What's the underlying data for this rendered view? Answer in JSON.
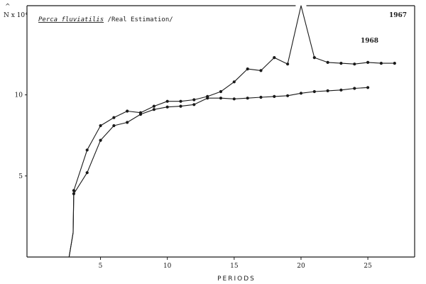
{
  "chart_data": {
    "type": "line",
    "title_italic": "Perca fluviatilis",
    "title_rest": " /Real Estimation/",
    "xlabel": "PERIODS",
    "ylabel": "N x 10⁴",
    "ylabel_hat": "^",
    "xlim": [
      -0.5,
      28.5
    ],
    "ylim": [
      0,
      15.5
    ],
    "xticks": [
      5,
      10,
      15,
      20,
      25
    ],
    "yticks": [
      5,
      10
    ],
    "grid": false,
    "series": [
      {
        "name": "1967",
        "x": [
          2.65,
          2.95,
          3,
          4,
          5,
          6,
          7,
          8,
          9,
          10,
          11,
          12,
          13,
          14,
          15,
          16,
          17,
          18,
          19,
          20,
          21,
          22,
          23,
          24,
          25,
          26,
          27
        ],
        "y": [
          0,
          1.5,
          4.1,
          6.6,
          8.1,
          8.6,
          9.0,
          8.9,
          9.3,
          9.6,
          9.6,
          9.7,
          9.9,
          10.2,
          10.8,
          11.6,
          11.5,
          12.3,
          11.9,
          15.5,
          12.3,
          12.0,
          11.95,
          11.9,
          12.0,
          11.95,
          11.95
        ],
        "markers": [
          false,
          false,
          true,
          true,
          true,
          true,
          true,
          true,
          true,
          true,
          true,
          true,
          true,
          true,
          true,
          true,
          true,
          true,
          true,
          false,
          true,
          true,
          true,
          true,
          true,
          true,
          true
        ]
      },
      {
        "name": "1968",
        "x": [
          2.65,
          2.95,
          3,
          4,
          5,
          6,
          7,
          8,
          9,
          10,
          11,
          12,
          13,
          14,
          15,
          16,
          17,
          18,
          19,
          20,
          21,
          22,
          23,
          24,
          25
        ],
        "y": [
          0,
          1.5,
          3.9,
          5.2,
          7.2,
          8.1,
          8.3,
          8.8,
          9.1,
          9.25,
          9.3,
          9.4,
          9.8,
          9.8,
          9.75,
          9.8,
          9.85,
          9.9,
          9.95,
          10.1,
          10.2,
          10.25,
          10.3,
          10.4,
          10.45
        ],
        "markers": [
          false,
          false,
          true,
          true,
          true,
          true,
          true,
          true,
          true,
          true,
          true,
          true,
          true,
          true,
          true,
          true,
          true,
          true,
          true,
          true,
          true,
          true,
          true,
          true,
          true
        ]
      }
    ]
  }
}
